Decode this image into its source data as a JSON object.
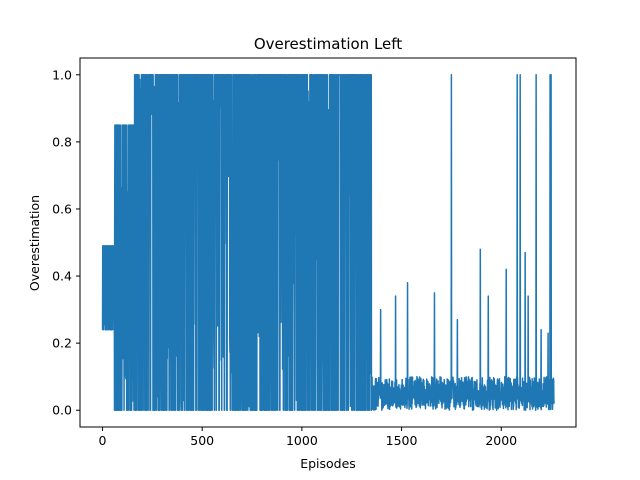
{
  "chart_data": {
    "type": "line",
    "title": "Overestimation Left",
    "xlabel": "Episodes",
    "ylabel": "Overestimation",
    "xlim": [
      -113,
      2375
    ],
    "ylim": [
      -0.05,
      1.05
    ],
    "xticks": [
      0,
      500,
      1000,
      1500,
      2000,
      2500
    ],
    "yticks": [
      0.0,
      0.2,
      0.4,
      0.6,
      0.8,
      1.0
    ],
    "xtick_labels": [
      "0",
      "500",
      "1000",
      "1500",
      "2000"
    ],
    "ytick_labels": [
      "0.0",
      "0.2",
      "0.4",
      "0.6",
      "0.8",
      "1.0"
    ],
    "grid": false,
    "series": [
      {
        "name": "overestimation",
        "color": "#1f77b4",
        "x_range": [
          0,
          2265
        ],
        "n_points": 2266,
        "seed": 7,
        "phases": [
          {
            "from": 0,
            "to": 60,
            "low": 0.24,
            "high": 0.49,
            "p_high": 0.5
          },
          {
            "from": 60,
            "to": 160,
            "low": 0.0,
            "high": 0.85,
            "p_high": 0.35
          },
          {
            "from": 160,
            "to": 1350,
            "low": 0.0,
            "high": 1.0,
            "p_high": 0.45
          },
          {
            "from": 1350,
            "to": 2266,
            "low": 0.0,
            "high": 0.1,
            "p_high": 0.0
          }
        ],
        "spikes": [
          {
            "x": 1750,
            "y": 1.0
          },
          {
            "x": 2080,
            "y": 1.0
          },
          {
            "x": 2095,
            "y": 1.0
          },
          {
            "x": 2175,
            "y": 1.0
          },
          {
            "x": 2245,
            "y": 1.0
          },
          {
            "x": 2250,
            "y": 1.0
          },
          {
            "x": 1395,
            "y": 0.3
          },
          {
            "x": 1470,
            "y": 0.34
          },
          {
            "x": 1530,
            "y": 0.38
          },
          {
            "x": 1665,
            "y": 0.35
          },
          {
            "x": 1780,
            "y": 0.27
          },
          {
            "x": 1895,
            "y": 0.48
          },
          {
            "x": 1935,
            "y": 0.34
          },
          {
            "x": 2025,
            "y": 0.42
          },
          {
            "x": 2120,
            "y": 0.47
          },
          {
            "x": 2135,
            "y": 0.34
          },
          {
            "x": 2200,
            "y": 0.24
          },
          {
            "x": 2235,
            "y": 0.23
          }
        ]
      }
    ]
  }
}
